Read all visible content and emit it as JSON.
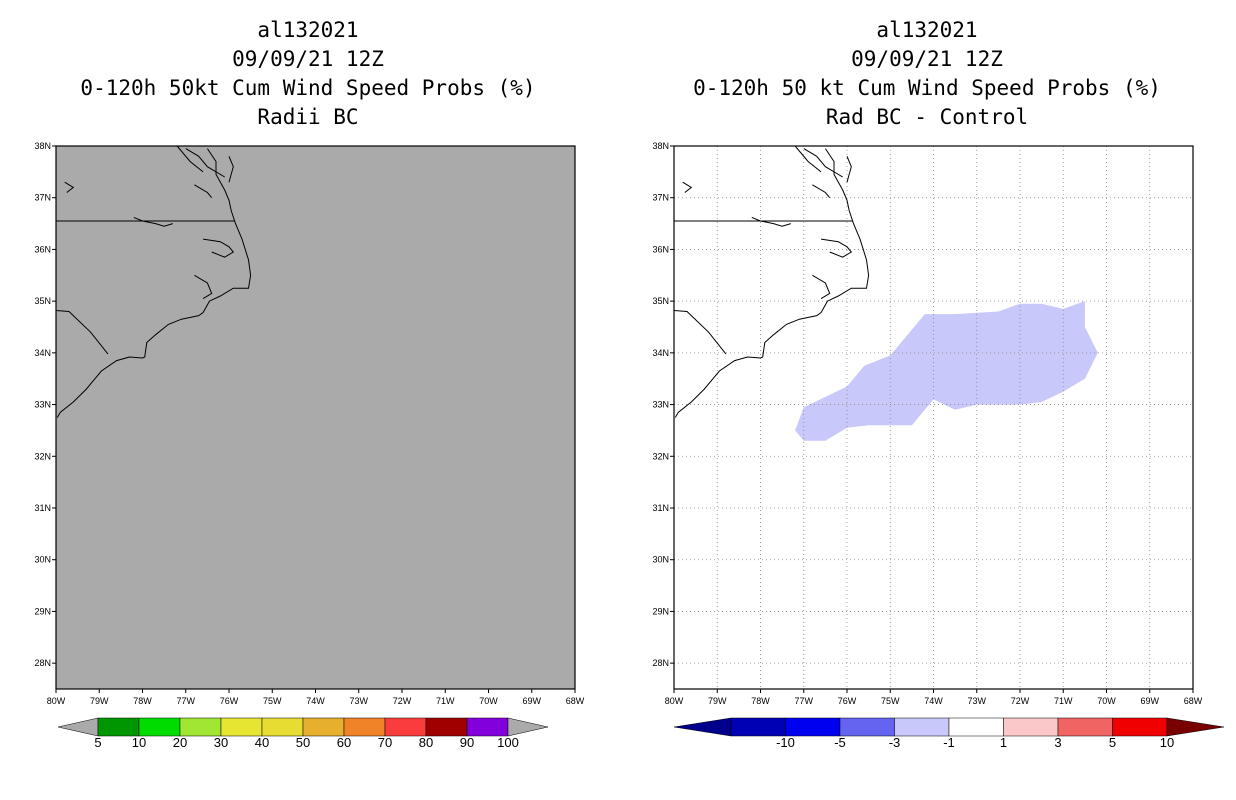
{
  "left_panel": {
    "title_lines": [
      "al132021",
      "09/09/21 12Z",
      "0-120h 50kt Cum Wind Speed Probs (%)",
      "Radii BC"
    ],
    "background_color": "#aaaaaa",
    "colorbar": {
      "labels": [
        "5",
        "10",
        "20",
        "30",
        "40",
        "50",
        "60",
        "70",
        "80",
        "90",
        "100"
      ],
      "colors": [
        "#009600",
        "#00dc00",
        "#a0e632",
        "#e6e632",
        "#e6dc32",
        "#e6af2d",
        "#f08228",
        "#fa3c3c",
        "#a00000",
        "#8200dc"
      ],
      "end_color": "#aaaaaa"
    }
  },
  "right_panel": {
    "title_lines": [
      "al132021",
      "09/09/21 12Z",
      "0-120h 50 kt Cum Wind Speed Probs (%)",
      "Rad BC - Control"
    ],
    "shaded_region_color": "#c8c8fa",
    "colorbar": {
      "labels": [
        "-10",
        "-5",
        "-3",
        "-1",
        "1",
        "3",
        "5",
        "10"
      ],
      "colors": [
        "#0000b4",
        "#0000f0",
        "#6464f0",
        "#c8c8fa",
        "#ffffff",
        "#fac8c8",
        "#f06464",
        "#f00000"
      ],
      "left_end_color": "#00008c",
      "right_end_color": "#780000"
    }
  },
  "axes": {
    "lat_labels": [
      "38N",
      "37N",
      "36N",
      "35N",
      "34N",
      "33N",
      "32N",
      "31N",
      "30N",
      "29N",
      "28N"
    ],
    "lon_labels": [
      "80W",
      "79W",
      "78W",
      "77W",
      "76W",
      "75W",
      "74W",
      "73W",
      "72W",
      "71W",
      "70W",
      "69W",
      "68W"
    ],
    "lat_range": [
      27.5,
      38
    ],
    "lon_range": [
      -80,
      -68
    ]
  },
  "region": {
    "shaded_polygon_lonlat": [
      [
        -77.2,
        32.5
      ],
      [
        -77.0,
        32.95
      ],
      [
        -76.0,
        33.35
      ],
      [
        -75.6,
        33.75
      ],
      [
        -75.0,
        33.95
      ],
      [
        -74.5,
        34.45
      ],
      [
        -74.2,
        34.75
      ],
      [
        -73.5,
        34.75
      ],
      [
        -72.5,
        34.8
      ],
      [
        -72.0,
        34.95
      ],
      [
        -71.5,
        34.95
      ],
      [
        -71.0,
        34.85
      ],
      [
        -70.5,
        35.0
      ],
      [
        -70.5,
        34.5
      ],
      [
        -70.2,
        34.0
      ],
      [
        -70.5,
        33.5
      ],
      [
        -71.0,
        33.25
      ],
      [
        -71.5,
        33.05
      ],
      [
        -72.0,
        33.0
      ],
      [
        -73.0,
        33.0
      ],
      [
        -73.5,
        32.9
      ],
      [
        -74.0,
        33.1
      ],
      [
        -74.3,
        32.8
      ],
      [
        -74.5,
        32.6
      ],
      [
        -75.5,
        32.6
      ],
      [
        -76.0,
        32.55
      ],
      [
        -76.5,
        32.3
      ],
      [
        -77.0,
        32.3
      ]
    ]
  }
}
